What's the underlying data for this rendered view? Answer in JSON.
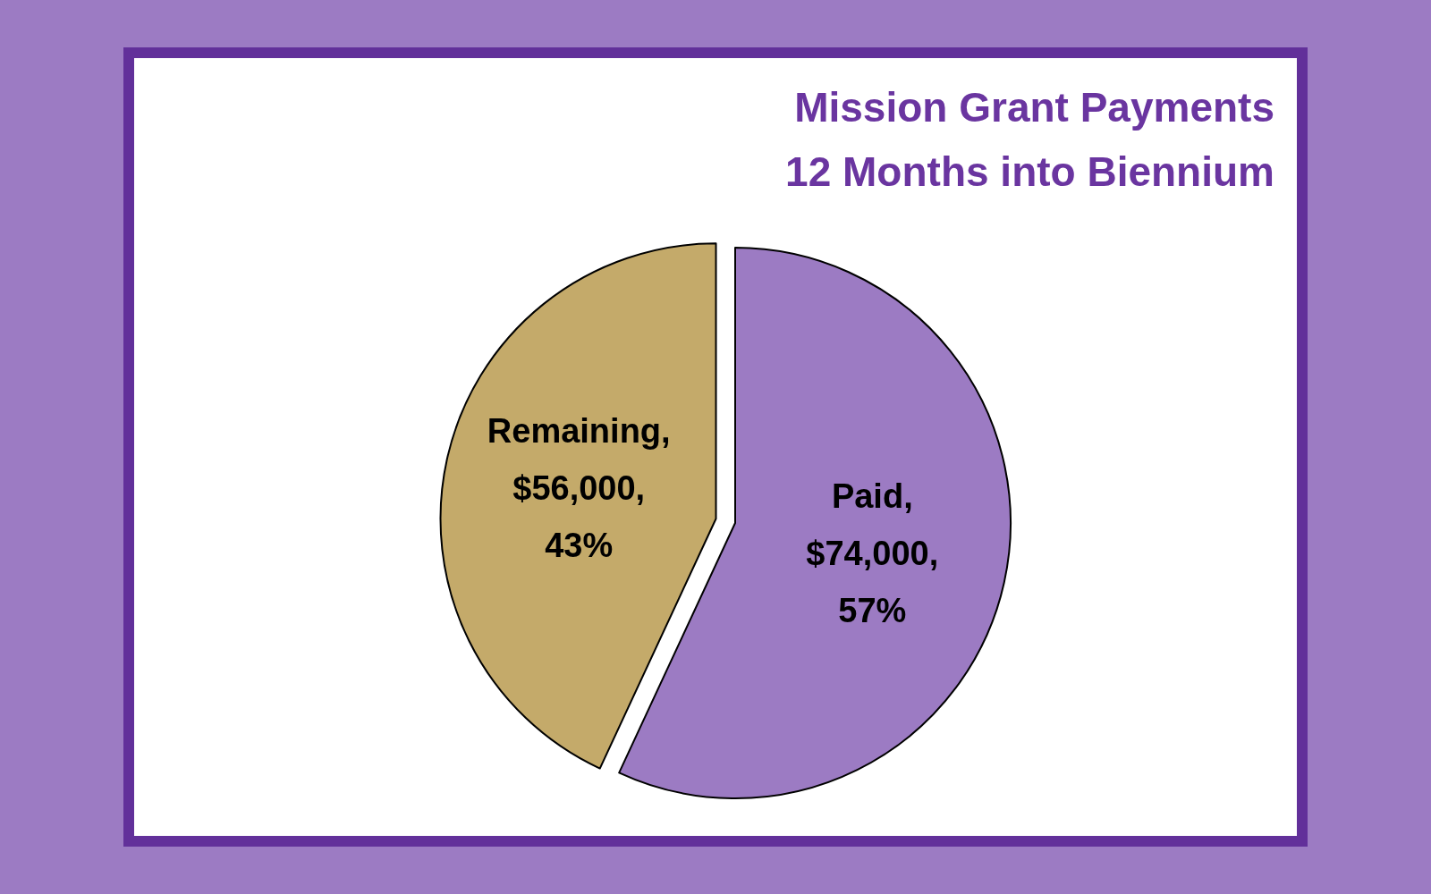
{
  "chart_data": {
    "type": "pie",
    "title": "Mission Grant Payments",
    "subtitle": "12 Months into Biennium",
    "categories": [
      "Paid",
      "Remaining"
    ],
    "values": [
      74000,
      56000
    ],
    "colors": [
      "#9c7bc3",
      "#c4aa6a"
    ],
    "value_labels": [
      ",\n$74,000,\n57%",
      ",\n$56,000,\n43%"
    ]
  }
}
